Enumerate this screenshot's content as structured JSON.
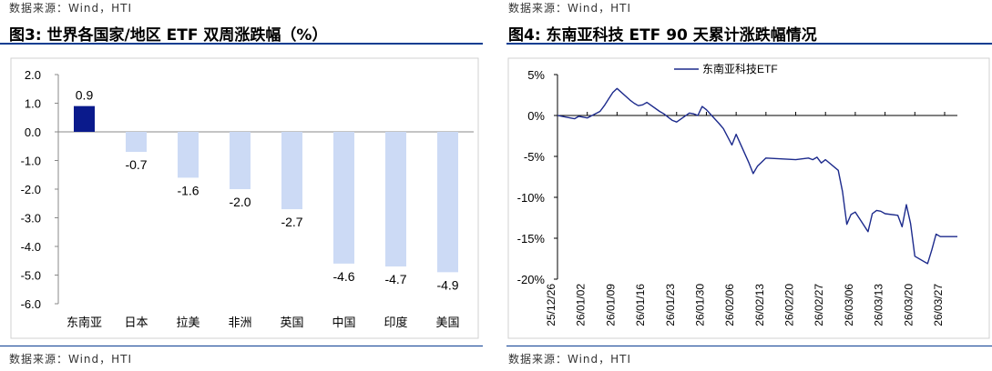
{
  "left": {
    "source_top": "数据来源：Wind，HTI",
    "title": "图3:  世界各国家/地区 ETF 双周涨跌幅（%）",
    "source_bottom": "数据来源：Wind，HTI"
  },
  "right": {
    "source_top": "数据来源：Wind，HTI",
    "title": "图4:  东南亚科技 ETF 90 天累计涨跌幅情况",
    "source_bottom": "数据来源：Wind，HTI"
  },
  "chart_data": [
    {
      "type": "bar",
      "categories": [
        "东南亚",
        "日本",
        "拉美",
        "非洲",
        "英国",
        "中国",
        "印度",
        "美国"
      ],
      "values": [
        0.9,
        -0.7,
        -1.6,
        -2.0,
        -2.7,
        -4.6,
        -4.7,
        -4.9
      ],
      "data_labels": [
        "0.9",
        "-0.7",
        "-1.6",
        "-2.0",
        "-2.7",
        "-4.6",
        "-4.7",
        "-4.9"
      ],
      "ylim": [
        -6.0,
        2.0
      ],
      "yticks": [
        2.0,
        1.0,
        0.0,
        -1.0,
        -2.0,
        -3.0,
        -4.0,
        -5.0,
        -6.0
      ],
      "ytick_labels": [
        "2.0",
        "1.0",
        "0.0",
        "-1.0",
        "-2.0",
        "-3.0",
        "-4.0",
        "-5.0",
        "-6.0"
      ],
      "colors": {
        "highlight": "#0a1a8c",
        "default": "#ccdaf5",
        "axis": "#888888"
      }
    },
    {
      "type": "line",
      "x_tick_labels": [
        "25/12/26",
        "26/01/02",
        "26/01/09",
        "26/01/16",
        "26/01/23",
        "26/01/30",
        "26/02/06",
        "26/02/13",
        "26/02/20",
        "26/02/27",
        "26/03/06",
        "26/03/13",
        "26/03/20",
        "26/03/27"
      ],
      "ylim": [
        -20,
        5
      ],
      "yticks": [
        5,
        0,
        -5,
        -10,
        -15,
        -20
      ],
      "ytick_labels": [
        "5%",
        "0%",
        "-5%",
        "-10%",
        "-15%",
        "-20%"
      ],
      "legend_position": "top",
      "series": [
        {
          "name": "东南亚科技ETF",
          "color": "#1c2a8c",
          "x": [
            "2025-12-26",
            "2025-12-29",
            "2025-12-30",
            "2025-12-31",
            "2026-01-02",
            "2026-01-05",
            "2026-01-06",
            "2026-01-07",
            "2026-01-08",
            "2026-01-09",
            "2026-01-12",
            "2026-01-13",
            "2026-01-14",
            "2026-01-15",
            "2026-01-16",
            "2026-01-19",
            "2026-01-20",
            "2026-01-21",
            "2026-01-22",
            "2026-01-23",
            "2026-01-26",
            "2026-01-27",
            "2026-01-28",
            "2026-01-29",
            "2026-01-30",
            "2026-02-02",
            "2026-02-03",
            "2026-02-04",
            "2026-02-05",
            "2026-02-06",
            "2026-02-09",
            "2026-02-10",
            "2026-02-11",
            "2026-02-12",
            "2026-02-13",
            "2026-02-20",
            "2026-02-23",
            "2026-02-24",
            "2026-02-25",
            "2026-02-26",
            "2026-02-27",
            "2026-03-02",
            "2026-03-03",
            "2026-03-04",
            "2026-03-05",
            "2026-03-06",
            "2026-03-09",
            "2026-03-10",
            "2026-03-11",
            "2026-03-12",
            "2026-03-13",
            "2026-03-16",
            "2026-03-17",
            "2026-03-18",
            "2026-03-19",
            "2026-03-20",
            "2026-03-23",
            "2026-03-24",
            "2026-03-25",
            "2026-03-26",
            "2026-03-27",
            "2026-03-30"
          ],
          "values": [
            0.0,
            -0.3,
            -0.4,
            -0.1,
            -0.3,
            0.5,
            1.2,
            2.0,
            2.8,
            3.3,
            1.9,
            1.5,
            1.2,
            1.3,
            1.6,
            0.5,
            0.2,
            -0.2,
            -0.6,
            -0.8,
            0.3,
            0.2,
            0.0,
            1.1,
            0.7,
            -1.0,
            -1.6,
            -2.6,
            -3.6,
            -2.3,
            -5.8,
            -7.1,
            -6.2,
            -5.7,
            -5.2,
            -5.4,
            -5.2,
            -5.4,
            -5.1,
            -5.8,
            -5.4,
            -6.7,
            -9.3,
            -13.3,
            -12.1,
            -11.8,
            -14.2,
            -12.0,
            -11.6,
            -11.7,
            -12.0,
            -12.2,
            -13.6,
            -10.9,
            -13.2,
            -17.2,
            -18.1,
            -16.4,
            -14.5,
            -14.8,
            -14.8,
            -14.8
          ]
        }
      ]
    }
  ]
}
